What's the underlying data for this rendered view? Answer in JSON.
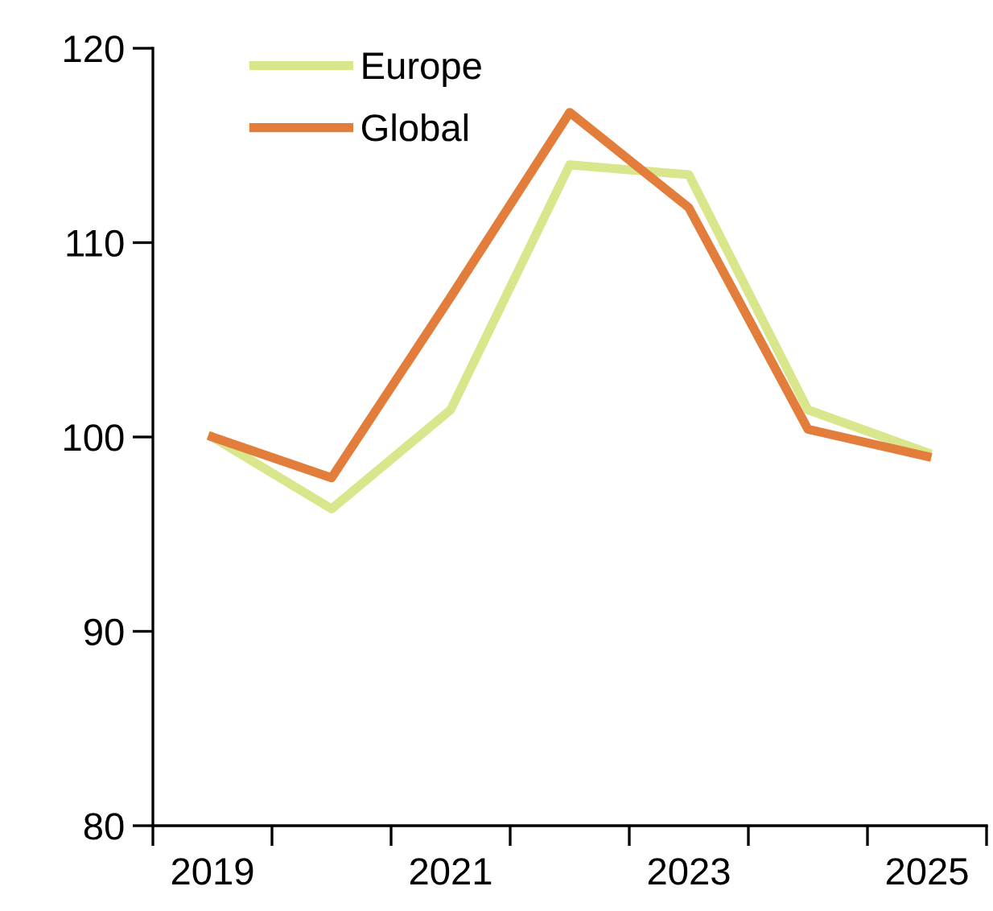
{
  "chart_data": {
    "type": "line",
    "categories": [
      "2019",
      null,
      "2021",
      null,
      "2023",
      null,
      "2025"
    ],
    "series": [
      {
        "name": "Europe",
        "color": "#d9e68c",
        "values": [
          100,
          96.3,
          101.4,
          114,
          113.5,
          101.4,
          99.2
        ]
      },
      {
        "name": "Global",
        "color": "#e27d3c",
        "values": [
          100,
          97.9,
          107.2,
          116.7,
          111.8,
          100.4,
          99
        ]
      }
    ],
    "ylim": [
      80,
      120
    ],
    "yticks": [
      80,
      90,
      100,
      110,
      120
    ],
    "grid": false,
    "legend": "top left",
    "line_style": "solid",
    "marker": "none"
  }
}
